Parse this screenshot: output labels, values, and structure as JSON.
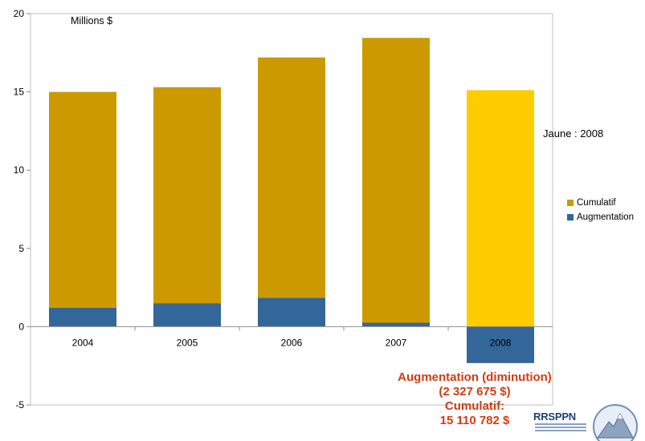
{
  "chart_data": {
    "type": "bar",
    "stacked": true,
    "categories": [
      "2004",
      "2005",
      "2006",
      "2007",
      "2008"
    ],
    "series": [
      {
        "name": "Augmentation",
        "color": "#336699",
        "values": [
          1.2,
          1.5,
          1.85,
          0.25,
          -2.327675
        ]
      },
      {
        "name": "Cumulatif",
        "color": "#cc9900",
        "values": [
          13.8,
          13.8,
          15.35,
          18.2,
          15.110782
        ]
      }
    ],
    "highlight": {
      "category": "2008",
      "series": "Cumulatif",
      "color": "#ffcc00"
    },
    "ylim": [
      -5,
      20
    ],
    "yticks": [
      -5,
      0,
      5,
      10,
      15,
      20
    ],
    "unit_label": "Millions $",
    "annotation": "Jaune  : 2008",
    "legend_position": "right",
    "grid": false
  },
  "summary": {
    "line1": "Augmentation (diminution)",
    "line2": "(2 327 675 $)",
    "line3": "Cumulatif:",
    "line4": "15 110 782 $"
  },
  "logo": {
    "text": "RRSPPN",
    "icon": "mountain-emblem-icon"
  }
}
